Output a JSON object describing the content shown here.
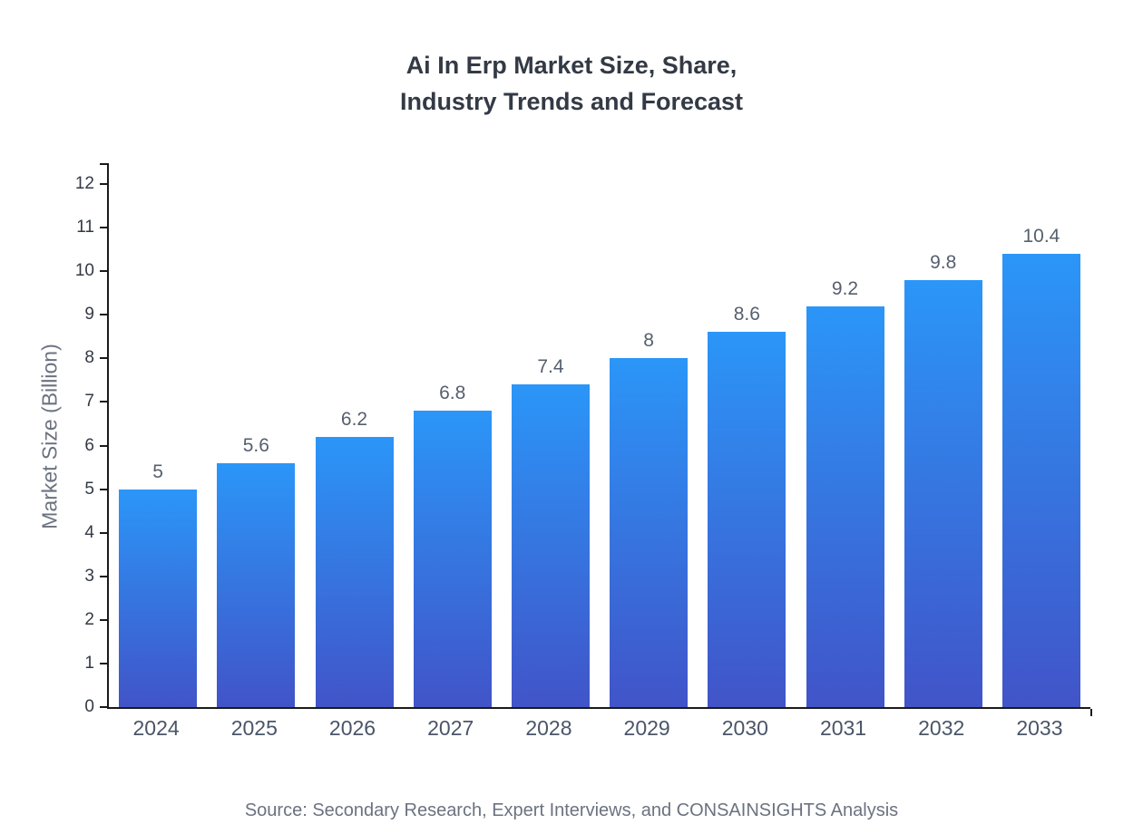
{
  "title": {
    "line1": "Ai In Erp Market Size, Share,",
    "line2": "Industry Trends and Forecast"
  },
  "source": "Source: Secondary Research, Expert Interviews, and CONSAINSIGHTS Analysis",
  "chart_data": {
    "type": "bar",
    "title": "Ai In Erp Market Size, Share, Industry Trends and Forecast",
    "categories": [
      "2024",
      "2025",
      "2026",
      "2027",
      "2028",
      "2029",
      "2030",
      "2031",
      "2032",
      "2033"
    ],
    "values": [
      5,
      5.6,
      6.2,
      6.8,
      7.4,
      8,
      8.6,
      9.2,
      9.8,
      10.4
    ],
    "value_labels": [
      "5",
      "5.6",
      "6.2",
      "6.8",
      "7.4",
      "8",
      "8.6",
      "9.2",
      "9.8",
      "10.4"
    ],
    "xlabel": "",
    "ylabel": "Market Size (Billion)",
    "ylim": [
      0,
      12
    ],
    "ytick_step": 1,
    "yticks": [
      0,
      1,
      2,
      3,
      4,
      5,
      6,
      7,
      8,
      9,
      10,
      11,
      12
    ],
    "grid": false,
    "legend": "none",
    "colors": {
      "bar_gradient_top": "#2b96f8",
      "bar_gradient_bottom": "#4154c8",
      "axis": "#1a1a1a",
      "title_text": "#333a45",
      "tick_text": "#333a45",
      "xlabel_text": "#4a5568",
      "value_label_text": "#565f6e",
      "source_text": "#6b7280"
    }
  }
}
